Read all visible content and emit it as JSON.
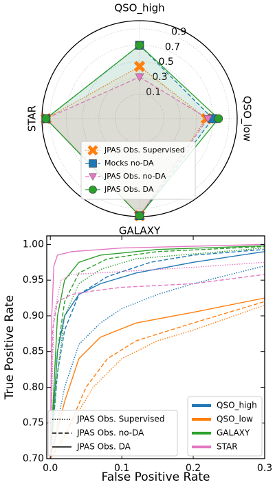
{
  "chart_data": [
    {
      "type": "radar",
      "categories": [
        "QSO_high",
        "QSO_low",
        "GALAXY",
        "STAR"
      ],
      "rlim": [
        -0.2,
        1.0
      ],
      "rticks": [
        0.1,
        0.3,
        0.5,
        0.7,
        0.9
      ],
      "grid": true,
      "legend": "lower center",
      "series": [
        {
          "name": "JPAS Obs. Supervised",
          "color": "#ff7f0e",
          "dash": "dotted",
          "marker": "x",
          "values": [
            0.44,
            0.62,
            0.99,
            0.95
          ]
        },
        {
          "name": "Mocks no-DA",
          "color": "#1f77b4",
          "dash": "dashed",
          "marker": "square",
          "values": [
            0.7,
            0.7,
            0.99,
            0.95
          ]
        },
        {
          "name": "JPAS Obs. no-DA",
          "color": "#e377c2",
          "dash": "dashed",
          "marker": "triangle-down",
          "values": [
            0.31,
            0.64,
            0.99,
            0.95
          ]
        },
        {
          "name": "JPAS Obs. DA",
          "color": "#2ca02c",
          "dash": "solid",
          "marker": "circle",
          "values": [
            0.7,
            0.77,
            0.99,
            0.95
          ]
        }
      ]
    },
    {
      "type": "line",
      "x_label": "False Positive Rate",
      "y_label": "True Positive Rate",
      "xlim": [
        -0.005,
        0.3
      ],
      "ylim": [
        0.7,
        1.012
      ],
      "xticks": [
        {
          "value": 0,
          "label": "0.0"
        },
        0.1,
        0.2,
        0.3
      ],
      "yticks": [
        {
          "value": 0.7,
          "label": "0.70"
        },
        0.75,
        {
          "value": 0.8,
          "label": "0.80"
        },
        0.85,
        {
          "value": 0.9,
          "label": "0.90"
        },
        0.95,
        {
          "value": 1.0,
          "label": "1.00"
        }
      ],
      "legend": "lower right",
      "style_legend": "lower left",
      "line_styles": [
        {
          "name": "JPAS Obs. Supervised",
          "dash": "dotted"
        },
        {
          "name": "JPAS Obs. no-DA",
          "dash": "dashed"
        },
        {
          "name": "JPAS Obs. DA",
          "dash": "solid"
        }
      ],
      "series": [
        {
          "name": "QSO_high",
          "color": "#1f77b4",
          "curves": [
            {
              "x": [
                0,
                0.02,
                0.04,
                0.07,
                0.1,
                0.15,
                0.2,
                0.3
              ],
              "values": [
                0.7,
                0.8,
                0.86,
                0.89,
                0.91,
                0.93,
                0.945,
                0.97
              ]
            },
            {
              "x": [
                0,
                0.01,
                0.02,
                0.04,
                0.08,
                0.14,
                0.2,
                0.3
              ],
              "values": [
                0.7,
                0.82,
                0.88,
                0.93,
                0.955,
                0.975,
                0.985,
                0.993
              ]
            },
            {
              "x": [
                0,
                0.01,
                0.02,
                0.04,
                0.07,
                0.12,
                0.2,
                0.3
              ],
              "values": [
                0.7,
                0.85,
                0.9,
                0.93,
                0.945,
                0.96,
                0.975,
                0.99
              ]
            }
          ]
        },
        {
          "name": "QSO_low",
          "color": "#ff7f0e",
          "curves": [
            {
              "x": [
                0,
                0.03,
                0.06,
                0.1,
                0.15,
                0.2,
                0.3
              ],
              "values": [
                0.7,
                0.75,
                0.8,
                0.84,
                0.865,
                0.88,
                0.915
              ]
            },
            {
              "x": [
                0,
                0.02,
                0.05,
                0.08,
                0.12,
                0.2,
                0.3
              ],
              "values": [
                0.7,
                0.73,
                0.8,
                0.84,
                0.865,
                0.89,
                0.92
              ]
            },
            {
              "x": [
                0,
                0.02,
                0.04,
                0.07,
                0.12,
                0.2,
                0.3
              ],
              "values": [
                0.7,
                0.78,
                0.84,
                0.87,
                0.89,
                0.905,
                0.925
              ]
            }
          ]
        },
        {
          "name": "GALAXY",
          "color": "#2ca02c",
          "curves": [
            {
              "x": [
                0,
                0.01,
                0.02,
                0.04,
                0.07,
                0.12,
                0.3
              ],
              "values": [
                0.7,
                0.82,
                0.9,
                0.945,
                0.965,
                0.98,
                0.995
              ]
            },
            {
              "x": [
                0,
                0.01,
                0.02,
                0.04,
                0.08,
                0.15,
                0.3
              ],
              "values": [
                0.7,
                0.85,
                0.92,
                0.96,
                0.98,
                0.99,
                0.997
              ]
            },
            {
              "x": [
                0,
                0.005,
                0.01,
                0.02,
                0.04,
                0.07,
                0.15,
                0.3
              ],
              "values": [
                0.7,
                0.8,
                0.9,
                0.95,
                0.975,
                0.985,
                0.993,
                0.998
              ]
            }
          ]
        },
        {
          "name": "STAR",
          "color": "#e377c2",
          "curves": [
            {
              "x": [
                0,
                0.005,
                0.015,
                0.03,
                0.1,
                0.2,
                0.3
              ],
              "values": [
                0.7,
                0.9,
                0.95,
                0.958,
                0.962,
                0.968,
                0.975
              ]
            },
            {
              "x": [
                0,
                0.003,
                0.01,
                0.03,
                0.06,
                0.1,
                0.2,
                0.3
              ],
              "values": [
                0.7,
                0.88,
                0.92,
                0.93,
                0.935,
                0.94,
                0.945,
                0.958
              ]
            },
            {
              "x": [
                0,
                0.002,
                0.005,
                0.01,
                0.03,
                0.1,
                0.3
              ],
              "values": [
                0.7,
                0.9,
                0.97,
                0.985,
                0.99,
                0.995,
                1.0
              ]
            }
          ]
        }
      ]
    }
  ]
}
